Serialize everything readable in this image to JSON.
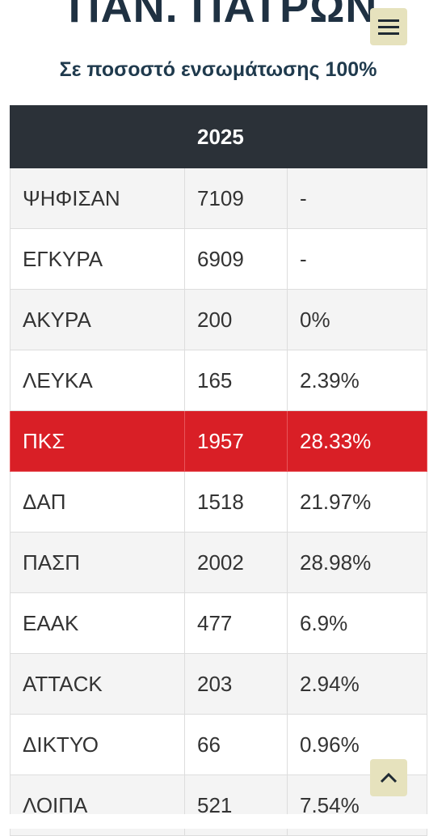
{
  "header": {
    "title": "ΠΑΝ. ΠΑΤΡΩΝ",
    "subtitle": "Σε ποσοστό ενσωμάτωσης 100%"
  },
  "table": {
    "year": "2025",
    "rows": [
      [
        "ΨΗΦΙΣΑΝ",
        "7109",
        "-"
      ],
      [
        "ΕΓΚΥΡΑ",
        "6909",
        "-"
      ],
      [
        "ΑΚΥΡΑ",
        "200",
        "0%"
      ],
      [
        "ΛΕΥΚΑ",
        "165",
        "2.39%"
      ],
      [
        "ΠΚΣ",
        "1957",
        "28.33%"
      ],
      [
        "ΔΑΠ",
        "1518",
        "21.97%"
      ],
      [
        "ΠΑΣΠ",
        "2002",
        "28.98%"
      ],
      [
        "ΕΑΑΚ",
        "477",
        "6.9%"
      ],
      [
        "ATTACK",
        "203",
        "2.94%"
      ],
      [
        "ΔΙΚΤΥΟ",
        "66",
        "0.96%"
      ],
      [
        "ΛΟΙΠΑ",
        "521",
        "7.54%"
      ]
    ]
  }
}
